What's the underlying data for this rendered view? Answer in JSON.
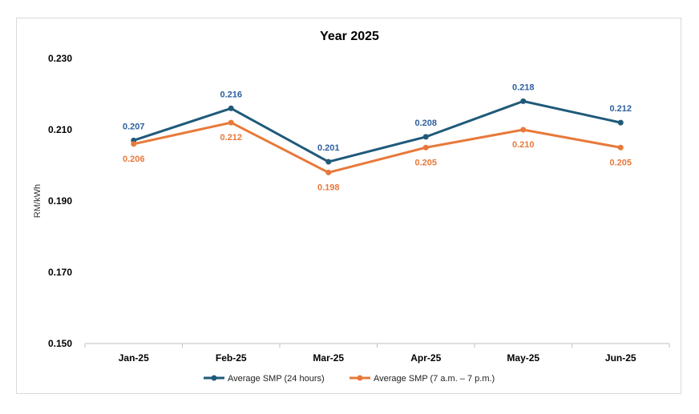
{
  "chart_data": {
    "type": "line",
    "title": "Year 2025",
    "xlabel": "",
    "ylabel": "RM/kWh",
    "ylim": [
      0.15,
      0.23
    ],
    "yticks": [
      "0.150",
      "0.170",
      "0.190",
      "0.210",
      "0.230"
    ],
    "categories": [
      "Jan-25",
      "Feb-25",
      "Mar-25",
      "Apr-25",
      "May-25",
      "Jun-25"
    ],
    "series": [
      {
        "name": "Average SMP (24 hours)",
        "color": "#1f5a7a",
        "label_color": "#2e5f9e",
        "values": [
          0.207,
          0.216,
          0.201,
          0.208,
          0.218,
          0.212
        ],
        "labels": [
          "0.207",
          "0.216",
          "0.201",
          "0.208",
          "0.218",
          "0.212"
        ]
      },
      {
        "name": "Average SMP (7 a.m. – 7 p.m.)",
        "color": "#e8793a",
        "label_color": "#e8793a",
        "values": [
          0.206,
          0.212,
          0.198,
          0.205,
          0.21,
          0.205
        ],
        "labels": [
          "0.206",
          "0.212",
          "0.198",
          "0.205",
          "0.210",
          "0.205"
        ]
      }
    ],
    "grid": false,
    "legend": "bottom"
  }
}
